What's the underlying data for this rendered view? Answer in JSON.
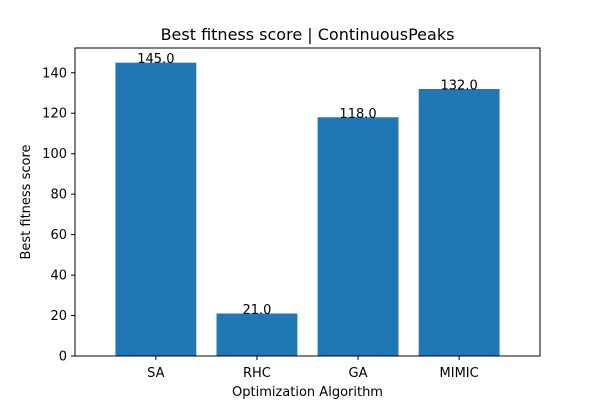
{
  "chart_data": {
    "type": "bar",
    "title": "Best fitness score | ContinuousPeaks",
    "xlabel": "Optimization Algorithm",
    "ylabel": "Best fitness score",
    "categories": [
      "SA",
      "RHC",
      "GA",
      "MIMIC"
    ],
    "values": [
      145.0,
      21.0,
      118.0,
      132.0
    ],
    "data_labels": [
      "145.0",
      "21.0",
      "118.0",
      "132.0"
    ],
    "ylim": [
      0,
      152.25
    ],
    "yticks": [
      0,
      20,
      40,
      60,
      80,
      100,
      120,
      140
    ],
    "bar_color": "#1f77b4",
    "grid": false,
    "legend": "none"
  }
}
